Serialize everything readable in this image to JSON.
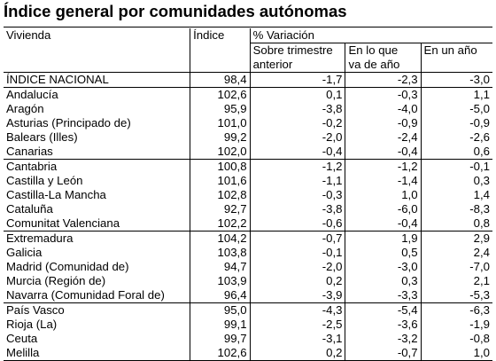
{
  "title": "Índice general por comunidades autónomas",
  "headers": {
    "col1": "Vivienda",
    "col2": "Índice",
    "variation_group": "% Variación",
    "var1_line1": "Sobre trimestre",
    "var1_line2": "anterior",
    "var2_line1": "En lo que",
    "var2_line2": "va de año",
    "var3": "En un año"
  },
  "rows": [
    {
      "name": "ÍNDICE NACIONAL",
      "index": "98,4",
      "q": "-1,7",
      "ytd": "-2,3",
      "yoy": "-3,0"
    },
    {
      "name": "Andalucía",
      "index": "102,6",
      "q": "0,1",
      "ytd": "-0,3",
      "yoy": "1,1"
    },
    {
      "name": "Aragón",
      "index": "95,9",
      "q": "-3,8",
      "ytd": "-4,0",
      "yoy": "-5,0"
    },
    {
      "name": "Asturias (Principado de)",
      "index": "101,0",
      "q": "-0,2",
      "ytd": "-0,9",
      "yoy": "-0,9"
    },
    {
      "name": "Balears (Illes)",
      "index": "99,2",
      "q": "-2,0",
      "ytd": "-2,4",
      "yoy": "-2,6"
    },
    {
      "name": "Canarias",
      "index": "102,0",
      "q": "-0,4",
      "ytd": "-0,4",
      "yoy": "0,6"
    },
    {
      "name": "Cantabria",
      "index": "100,8",
      "q": "-1,2",
      "ytd": "-1,2",
      "yoy": "-0,1"
    },
    {
      "name": "Castilla y León",
      "index": "101,6",
      "q": "-1,1",
      "ytd": "-1,4",
      "yoy": "0,3"
    },
    {
      "name": "Castilla-La Mancha",
      "index": "102,8",
      "q": "-0,3",
      "ytd": "1,0",
      "yoy": "1,4"
    },
    {
      "name": "Cataluña",
      "index": "92,7",
      "q": "-3,8",
      "ytd": "-6,0",
      "yoy": "-8,3"
    },
    {
      "name": "Comunitat Valenciana",
      "index": "102,2",
      "q": "-0,6",
      "ytd": "-0,4",
      "yoy": "0,8"
    },
    {
      "name": "Extremadura",
      "index": "104,2",
      "q": "-0,7",
      "ytd": "1,9",
      "yoy": "2,9"
    },
    {
      "name": "Galicia",
      "index": "103,8",
      "q": "-0,1",
      "ytd": "0,5",
      "yoy": "2,4"
    },
    {
      "name": "Madrid (Comunidad de)",
      "index": "94,7",
      "q": "-2,0",
      "ytd": "-3,0",
      "yoy": "-7,0"
    },
    {
      "name": "Murcia (Región de)",
      "index": "103,9",
      "q": "0,2",
      "ytd": "0,3",
      "yoy": "2,1"
    },
    {
      "name": "Navarra (Comunidad Foral de)",
      "index": "96,4",
      "q": "-3,9",
      "ytd": "-3,3",
      "yoy": "-5,3"
    },
    {
      "name": "País Vasco",
      "index": "95,0",
      "q": "-4,3",
      "ytd": "-5,4",
      "yoy": "-6,3"
    },
    {
      "name": "Rioja (La)",
      "index": "99,1",
      "q": "-2,5",
      "ytd": "-3,6",
      "yoy": "-1,9"
    },
    {
      "name": "Ceuta",
      "index": "99,7",
      "q": "-3,1",
      "ytd": "-3,2",
      "yoy": "-0,8"
    },
    {
      "name": "Melilla",
      "index": "102,6",
      "q": "0,2",
      "ytd": "-0,7",
      "yoy": "1,0"
    }
  ]
}
